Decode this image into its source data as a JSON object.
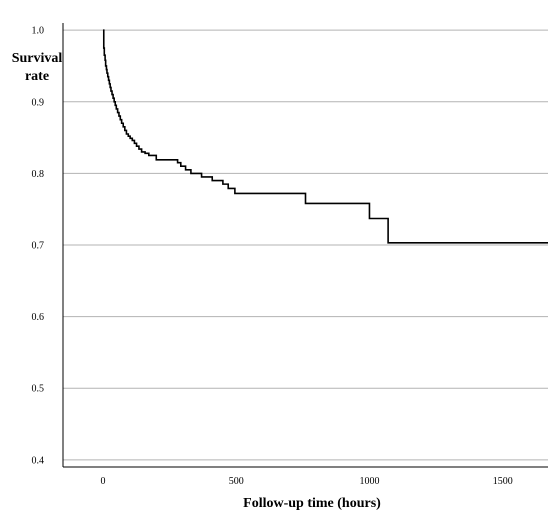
{
  "chart_data": {
    "type": "line",
    "subtype": "step",
    "title": "",
    "xlabel": "Follow-up time (hours)",
    "ylabel_lines": [
      "Survival",
      "rate"
    ],
    "xlim": [
      -150,
      1670
    ],
    "ylim": [
      0.39,
      1.01
    ],
    "x_ticks": [
      0,
      500,
      1000,
      1500
    ],
    "x_tick_labels": [
      "0",
      "500",
      "1000",
      "1500"
    ],
    "y_ticks": [
      0.4,
      0.5,
      0.6,
      0.7,
      0.8,
      0.9,
      1.0
    ],
    "y_tick_labels": [
      "0.4",
      "0.5",
      "0.6",
      "0.7",
      "0.8",
      "0.9",
      "1.0"
    ],
    "grid": {
      "horizontal": true,
      "vertical": false
    },
    "legend": "none",
    "colors": {
      "line": "#000000",
      "grid": "#b3b3b3",
      "axis": "#000000"
    },
    "series": [
      {
        "x": [
          0,
          3,
          5,
          8,
          10,
          13,
          15,
          18,
          21,
          24,
          27,
          30,
          34,
          38,
          42,
          46,
          50,
          55,
          60,
          65,
          70,
          76,
          82,
          88,
          95,
          102,
          110,
          118,
          126,
          135,
          145,
          158,
          172,
          200,
          280,
          292,
          310,
          330,
          370,
          410,
          450,
          470,
          495,
          760,
          1000,
          1070,
          1670
        ],
        "y": [
          1.0,
          0.975,
          0.965,
          0.958,
          0.95,
          0.945,
          0.94,
          0.935,
          0.93,
          0.925,
          0.92,
          0.915,
          0.91,
          0.905,
          0.9,
          0.895,
          0.89,
          0.885,
          0.88,
          0.875,
          0.87,
          0.865,
          0.86,
          0.855,
          0.852,
          0.849,
          0.846,
          0.842,
          0.838,
          0.834,
          0.83,
          0.828,
          0.825,
          0.819,
          0.815,
          0.81,
          0.805,
          0.8,
          0.795,
          0.79,
          0.785,
          0.779,
          0.772,
          0.758,
          0.737,
          0.703,
          0.703
        ]
      }
    ]
  }
}
